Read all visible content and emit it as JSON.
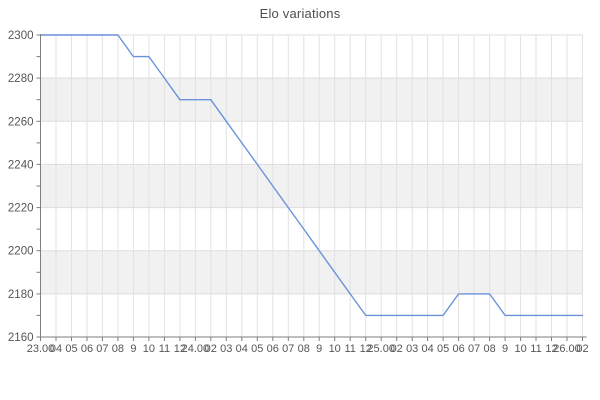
{
  "title": "Elo variations",
  "chart_data": {
    "type": "line",
    "title": "Elo variations",
    "xlabel": "",
    "ylabel": "",
    "ylim": [
      2160,
      2300
    ],
    "y_major_step": 20,
    "y_minor_step": 10,
    "grid": true,
    "banded_background": true,
    "legend": "none",
    "x_tick_labels": [
      "23.00",
      "04",
      "05",
      "06",
      "07",
      "08",
      "9",
      "10",
      "11",
      "12",
      "24.00",
      "02",
      "03",
      "04",
      "05",
      "06",
      "07",
      "08",
      "9",
      "10",
      "11",
      "12",
      "25.00",
      "02",
      "03",
      "04",
      "05",
      "06",
      "07",
      "08",
      "9",
      "10",
      "11",
      "12",
      "26.00",
      "02"
    ],
    "y_tick_labels": [
      "2300",
      "2280",
      "2260",
      "2240",
      "2220",
      "2200",
      "2180",
      "2160"
    ],
    "series": [
      {
        "name": "Elo",
        "values": [
          2300,
          2300,
          2300,
          2300,
          2300,
          2300,
          2290,
          2290,
          2280,
          2270,
          2270,
          2270,
          2260,
          2250,
          2240,
          2230,
          2220,
          2210,
          2200,
          2190,
          2180,
          2170,
          2170,
          2170,
          2170,
          2170,
          2170,
          2180,
          2180,
          2180,
          2170,
          2170,
          2170,
          2170,
          2170,
          2170
        ]
      }
    ],
    "colors": {
      "line": "#6a92dc",
      "band": "#f1f1f2",
      "grid_vertical": "#e2e2e4",
      "grid_horizontal": "#dedede",
      "axis": "#7f7f7f",
      "tick_text": "#565656",
      "title_text": "#4d4d4d",
      "background": "#ffffff"
    }
  }
}
